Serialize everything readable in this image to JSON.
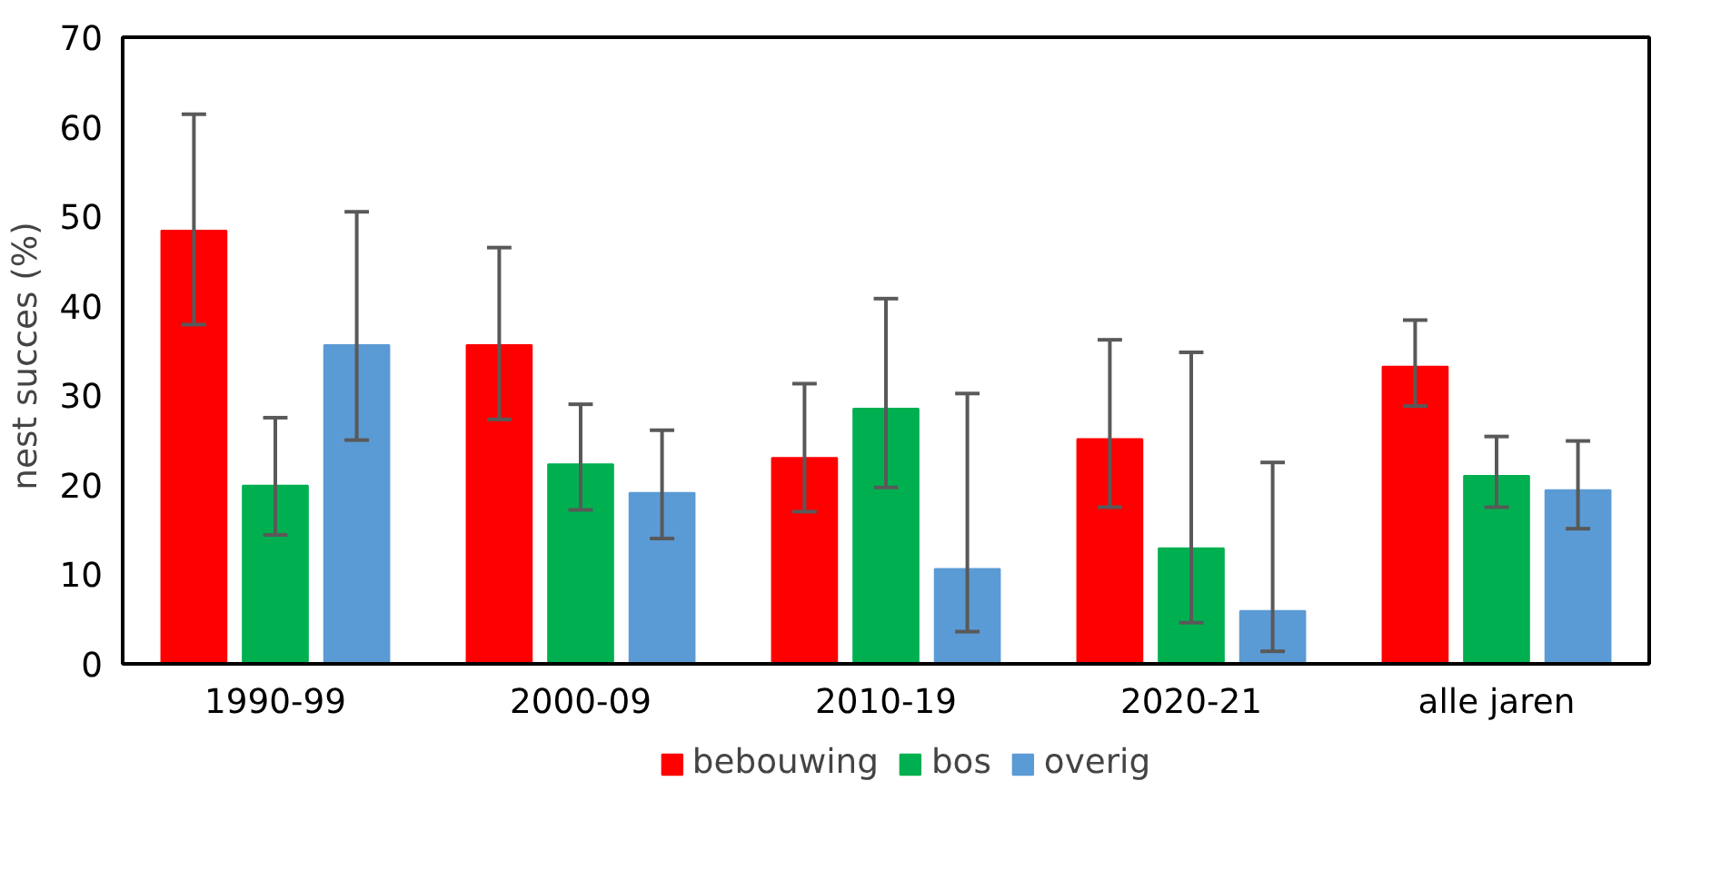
{
  "chart_data": {
    "type": "bar",
    "ylabel": "nest succes  (%)",
    "categories": [
      "1990-99",
      "2000-09",
      "2010-19",
      "2020-21",
      "alle jaren"
    ],
    "series": [
      {
        "name": "bebouwing",
        "color": "#ff0000",
        "values": [
          48.4,
          35.6,
          23.0,
          25.1,
          33.2
        ],
        "errors": [
          [
            37.9,
            61.4
          ],
          [
            27.3,
            46.5
          ],
          [
            17.0,
            31.3
          ],
          [
            17.5,
            36.2
          ],
          [
            28.8,
            38.4
          ]
        ]
      },
      {
        "name": "bos",
        "color": "#00b050",
        "values": [
          19.9,
          22.3,
          28.5,
          12.9,
          21.0
        ],
        "errors": [
          [
            14.4,
            27.5
          ],
          [
            17.2,
            29.0
          ],
          [
            19.7,
            40.8
          ],
          [
            4.6,
            34.8
          ],
          [
            17.5,
            25.4
          ]
        ]
      },
      {
        "name": "overig",
        "color": "#5b9bd5",
        "values": [
          35.6,
          19.1,
          10.6,
          5.9,
          19.4
        ],
        "errors": [
          [
            25.0,
            50.5
          ],
          [
            14.0,
            26.1
          ],
          [
            3.6,
            30.2
          ],
          [
            1.4,
            22.5
          ],
          [
            15.1,
            24.9
          ]
        ]
      }
    ],
    "ylim": [
      0,
      70
    ],
    "yticks": [
      0,
      10,
      20,
      30,
      40,
      50,
      60,
      70
    ],
    "grid": false,
    "legend": "bottom"
  }
}
